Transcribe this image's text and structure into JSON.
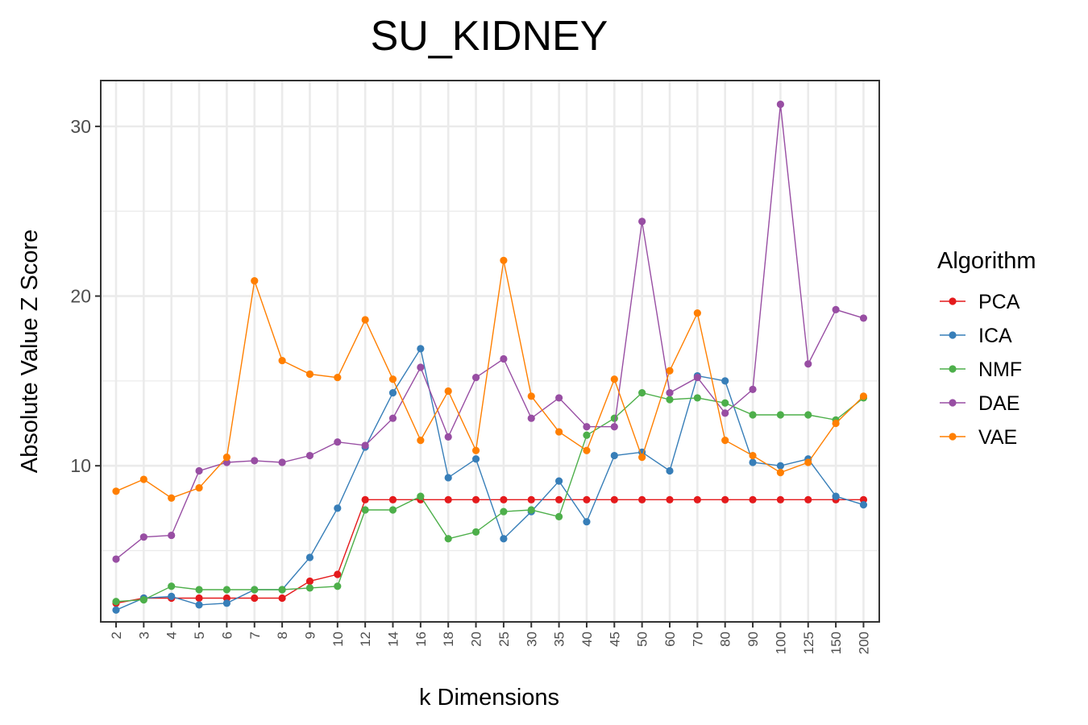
{
  "chart_data": {
    "type": "line",
    "title": "SU_KIDNEY",
    "xlabel": "k Dimensions",
    "ylabel": "Absolute Value Z Score",
    "categories": [
      "2",
      "3",
      "4",
      "5",
      "6",
      "7",
      "8",
      "9",
      "10",
      "12",
      "14",
      "16",
      "18",
      "20",
      "25",
      "30",
      "35",
      "40",
      "45",
      "50",
      "60",
      "70",
      "80",
      "90",
      "100",
      "125",
      "150",
      "200"
    ],
    "yticks": [
      10,
      20,
      30
    ],
    "ylim": [
      0.8,
      32.7
    ],
    "grid": true,
    "legend_title": "Algorithm",
    "legend_position": "right",
    "series": [
      {
        "name": "PCA",
        "color": "#e41a1c",
        "values": [
          1.9,
          2.2,
          2.2,
          2.2,
          2.2,
          2.2,
          2.2,
          3.2,
          3.6,
          8.0,
          8.0,
          8.0,
          8.0,
          8.0,
          8.0,
          8.0,
          8.0,
          8.0,
          8.0,
          8.0,
          8.0,
          8.0,
          8.0,
          8.0,
          8.0,
          8.0,
          8.0,
          8.0
        ]
      },
      {
        "name": "ICA",
        "color": "#377eb8",
        "values": [
          1.5,
          2.2,
          2.3,
          1.8,
          1.9,
          2.7,
          2.7,
          4.6,
          7.5,
          11.1,
          14.3,
          16.9,
          9.3,
          10.4,
          5.7,
          7.3,
          9.1,
          6.7,
          10.6,
          10.8,
          9.7,
          15.3,
          15.0,
          10.2,
          10.0,
          10.4,
          8.2,
          7.7
        ]
      },
      {
        "name": "NMF",
        "color": "#4daf4a",
        "values": [
          2.0,
          2.1,
          2.9,
          2.7,
          2.7,
          2.7,
          2.7,
          2.8,
          2.9,
          7.4,
          7.4,
          8.2,
          5.7,
          6.1,
          7.3,
          7.4,
          7.0,
          11.8,
          12.8,
          14.3,
          13.9,
          14.0,
          13.7,
          13.0,
          13.0,
          13.0,
          12.7,
          14.0
        ]
      },
      {
        "name": "DAE",
        "color": "#984ea3",
        "values": [
          4.5,
          5.8,
          5.9,
          9.7,
          10.2,
          10.3,
          10.2,
          10.6,
          11.4,
          11.2,
          12.8,
          15.8,
          11.7,
          15.2,
          16.3,
          12.8,
          14.0,
          12.3,
          12.3,
          24.4,
          14.3,
          15.2,
          13.1,
          14.5,
          31.3,
          16.0,
          19.2,
          18.7
        ]
      },
      {
        "name": "VAE",
        "color": "#ff7f00",
        "values": [
          8.5,
          9.2,
          8.1,
          8.7,
          10.5,
          20.9,
          16.2,
          15.4,
          15.2,
          18.6,
          15.1,
          11.5,
          14.4,
          10.9,
          22.1,
          14.1,
          12.0,
          10.9,
          15.1,
          10.5,
          15.6,
          19.0,
          11.5,
          10.6,
          9.6,
          10.2,
          12.5,
          14.1
        ]
      }
    ]
  }
}
